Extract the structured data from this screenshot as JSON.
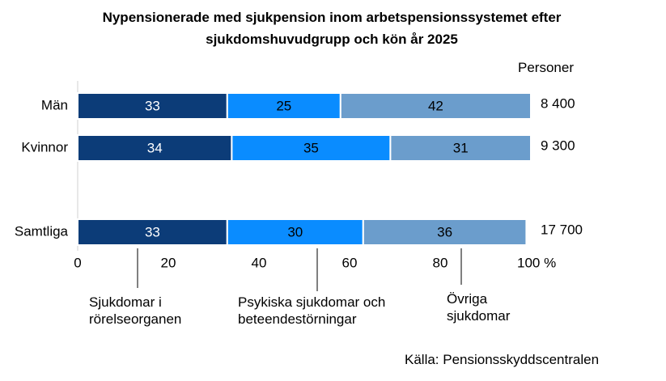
{
  "chart_data": {
    "type": "stacked-bar-horizontal",
    "title": "Nypensionerade med sjukpension inom arbetspensionssystemet efter sjukdomshuvudgrupp och kön år 2025",
    "categories": [
      "Män",
      "Kvinnor",
      null,
      "Samtliga"
    ],
    "series": [
      {
        "name": "Sjukdomar i rörelseorganen",
        "color": "#0c3c78",
        "values": [
          33,
          34,
          null,
          33
        ]
      },
      {
        "name": "Psykiska sjukdomar och beteendestörningar",
        "color": "#0a8cff",
        "values": [
          25,
          35,
          null,
          30
        ]
      },
      {
        "name": "Övriga sjukdomar",
        "color": "#6b9dcc",
        "values": [
          42,
          31,
          null,
          36
        ]
      }
    ],
    "xlim": [
      0,
      100
    ],
    "xticks": [
      0,
      20,
      40,
      60,
      80,
      {
        "value": 100,
        "label": "100 %"
      }
    ],
    "totals": {
      "title": "Personer",
      "values": [
        8400,
        9300,
        null,
        17700
      ],
      "value_labels": [
        "8 400",
        "9 300",
        null,
        "17 700"
      ]
    },
    "source": "Källa: Pensionsskyddscentralen"
  }
}
